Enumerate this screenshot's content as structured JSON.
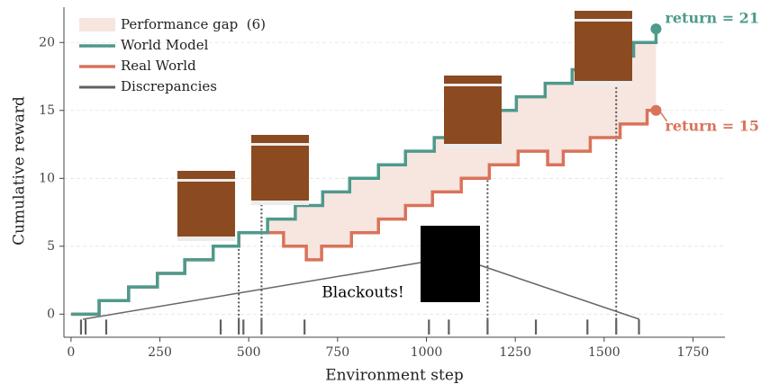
{
  "chart_data": {
    "type": "step",
    "xlabel": "Environment step",
    "ylabel": "Cumulative reward",
    "xlim": [
      -20,
      1840
    ],
    "ylim": [
      -1.7,
      22.6
    ],
    "xticks": [
      0,
      250,
      500,
      750,
      1000,
      1250,
      1500,
      1750
    ],
    "yticks": [
      0,
      5,
      10,
      15,
      20
    ],
    "grid": true,
    "legend": "upper left",
    "series": [
      {
        "name": "Performance gap  (6)",
        "color": "#f7e5df"
      },
      {
        "name": "World Model",
        "color": "#4e9a8c",
        "x": [
          0,
          79,
          162,
          243,
          320,
          400,
          472,
          553,
          631,
          708,
          784,
          865,
          941,
          1022,
          1098,
          1174,
          1253,
          1334,
          1410,
          1491,
          1583,
          1646
        ],
        "values": [
          0,
          1,
          2,
          3,
          4,
          5,
          6,
          7,
          8,
          9,
          10,
          11,
          12,
          13,
          14,
          15,
          16,
          17,
          18,
          19,
          20,
          21
        ]
      },
      {
        "name": "Real World",
        "color": "#d9735a",
        "x": [
          0,
          79,
          162,
          243,
          320,
          400,
          472,
          598,
          662,
          705,
          789,
          865,
          941,
          1017,
          1098,
          1177,
          1258,
          1341,
          1385,
          1461,
          1545,
          1621,
          1646
        ],
        "values": [
          0,
          1,
          2,
          3,
          4,
          5,
          6,
          5,
          4,
          5,
          6,
          7,
          8,
          9,
          10,
          11,
          12,
          11,
          12,
          13,
          14,
          15,
          15
        ]
      },
      {
        "name": "Discrepancies",
        "color": "#606060",
        "x": [
          28,
          41,
          99,
          421,
          472,
          485,
          536,
          657,
          1007,
          1063,
          1172,
          1308,
          1453,
          1534,
          1598
        ]
      }
    ],
    "annotations": [
      "return = 21",
      "return = 15"
    ],
    "blackout_label": "Blackouts!"
  }
}
